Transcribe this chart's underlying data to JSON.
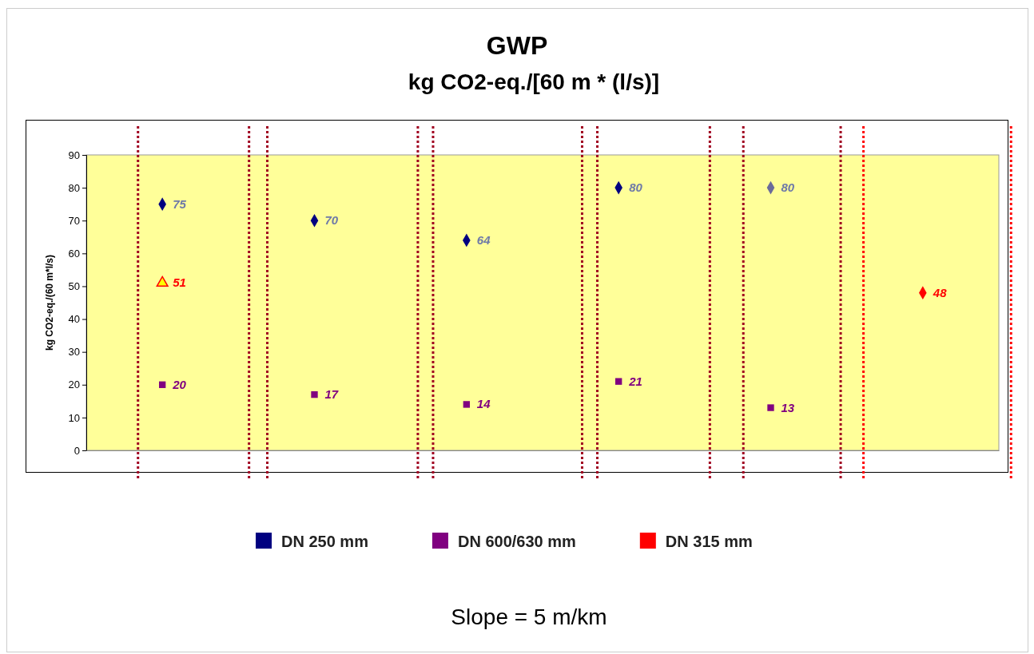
{
  "chart_data": {
    "type": "scatter",
    "title": "GWP",
    "subtitle": "kg CO2-eq./[60 m * (l/s)]",
    "ylabel": "kg CO2-eq./(60 m*l/s)",
    "categories": [
      null,
      null,
      null,
      null,
      null,
      null
    ],
    "ylim": [
      0,
      90
    ],
    "yticks": [
      0,
      10,
      20,
      30,
      40,
      50,
      60,
      70,
      80,
      90
    ],
    "grid": false,
    "legend": "bottom",
    "data_labels": true,
    "series": [
      {
        "name": "DN 250 mm",
        "color": "#000080",
        "colors": [
          "#000080",
          "#000080",
          "#000080",
          "#000080",
          "#6b6b9a",
          null
        ],
        "marker": "diamond",
        "values": [
          75,
          70,
          64,
          80,
          80,
          null
        ]
      },
      {
        "name": "DN 600/630 mm",
        "color": "#800080",
        "marker": "square",
        "values": [
          20,
          17,
          14,
          21,
          13,
          null
        ]
      },
      {
        "name": "DN 315 mm",
        "color": "#ff0000",
        "marker": "diamond",
        "values": [
          null,
          null,
          null,
          null,
          null,
          48
        ]
      },
      {
        "color": "#ff0000",
        "marker": "triangle",
        "values": [
          51,
          null,
          null,
          null,
          null,
          null
        ]
      }
    ],
    "annotations": [
      "Slope = 5 m/km"
    ]
  }
}
